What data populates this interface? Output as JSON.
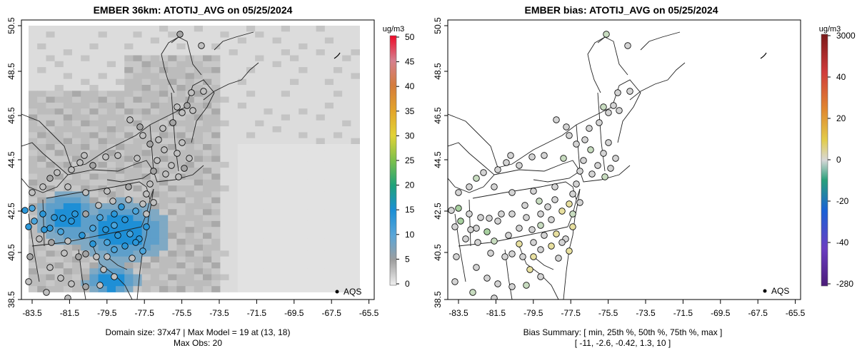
{
  "panels": [
    {
      "id": "model",
      "title": "EMBER 36km: ATOTIJ_AVG on 05/25/2024",
      "legend_label": "AQS",
      "footer": [
        "Domain size: 37x47 | Max Model = 19 at (13, 18)",
        "Max Obs: 20"
      ],
      "colorbar": {
        "unit": "ug/m3",
        "ticks": [
          "0",
          "5",
          "10",
          "15",
          "20",
          "25",
          "30",
          "35",
          "40",
          "45",
          "50"
        ]
      },
      "y_ticks": [
        "38.5",
        "40.5",
        "42.5",
        "44.5",
        "46.5",
        "48.5",
        "50.5"
      ],
      "x_ticks": [
        "-83.5",
        "-81.5",
        "-79.5",
        "-77.5",
        "-75.5",
        "-73.5",
        "-71.5",
        "-69.5",
        "-67.5",
        "-65.5"
      ]
    },
    {
      "id": "bias",
      "title": "EMBER bias: ATOTIJ_AVG on 05/25/2024",
      "legend_label": "AQS",
      "footer": [
        "Bias Summary: [ min, 25th %, 50th %, 75th %, max ]",
        "[ -11,   -2.6,   -0.42,   1.3,   10 ]"
      ],
      "colorbar": {
        "unit": "ug/m3",
        "ticks": [
          "3000",
          "40",
          "20",
          "0",
          "-20",
          "-40",
          "-280"
        ]
      },
      "y_ticks": [
        "38.5",
        "40.5",
        "42.5",
        "44.5",
        "46.5",
        "48.5",
        "50.5"
      ],
      "x_ticks": [
        "-83.5",
        "-81.5",
        "-79.5",
        "-77.5",
        "-75.5",
        "-73.5",
        "-71.5",
        "-69.5",
        "-67.5",
        "-65.5"
      ]
    }
  ],
  "colors": {
    "grid_high": "#1e8fd6",
    "grid_mid": "#7fa9c4",
    "grid_low": "#c8c8c8",
    "grid_bg": "#dcdcdc",
    "bias_near_zero": "#d4d4d4",
    "bias_pos": "#e8e0a0",
    "bias_neg": "#a8d0a0"
  }
}
